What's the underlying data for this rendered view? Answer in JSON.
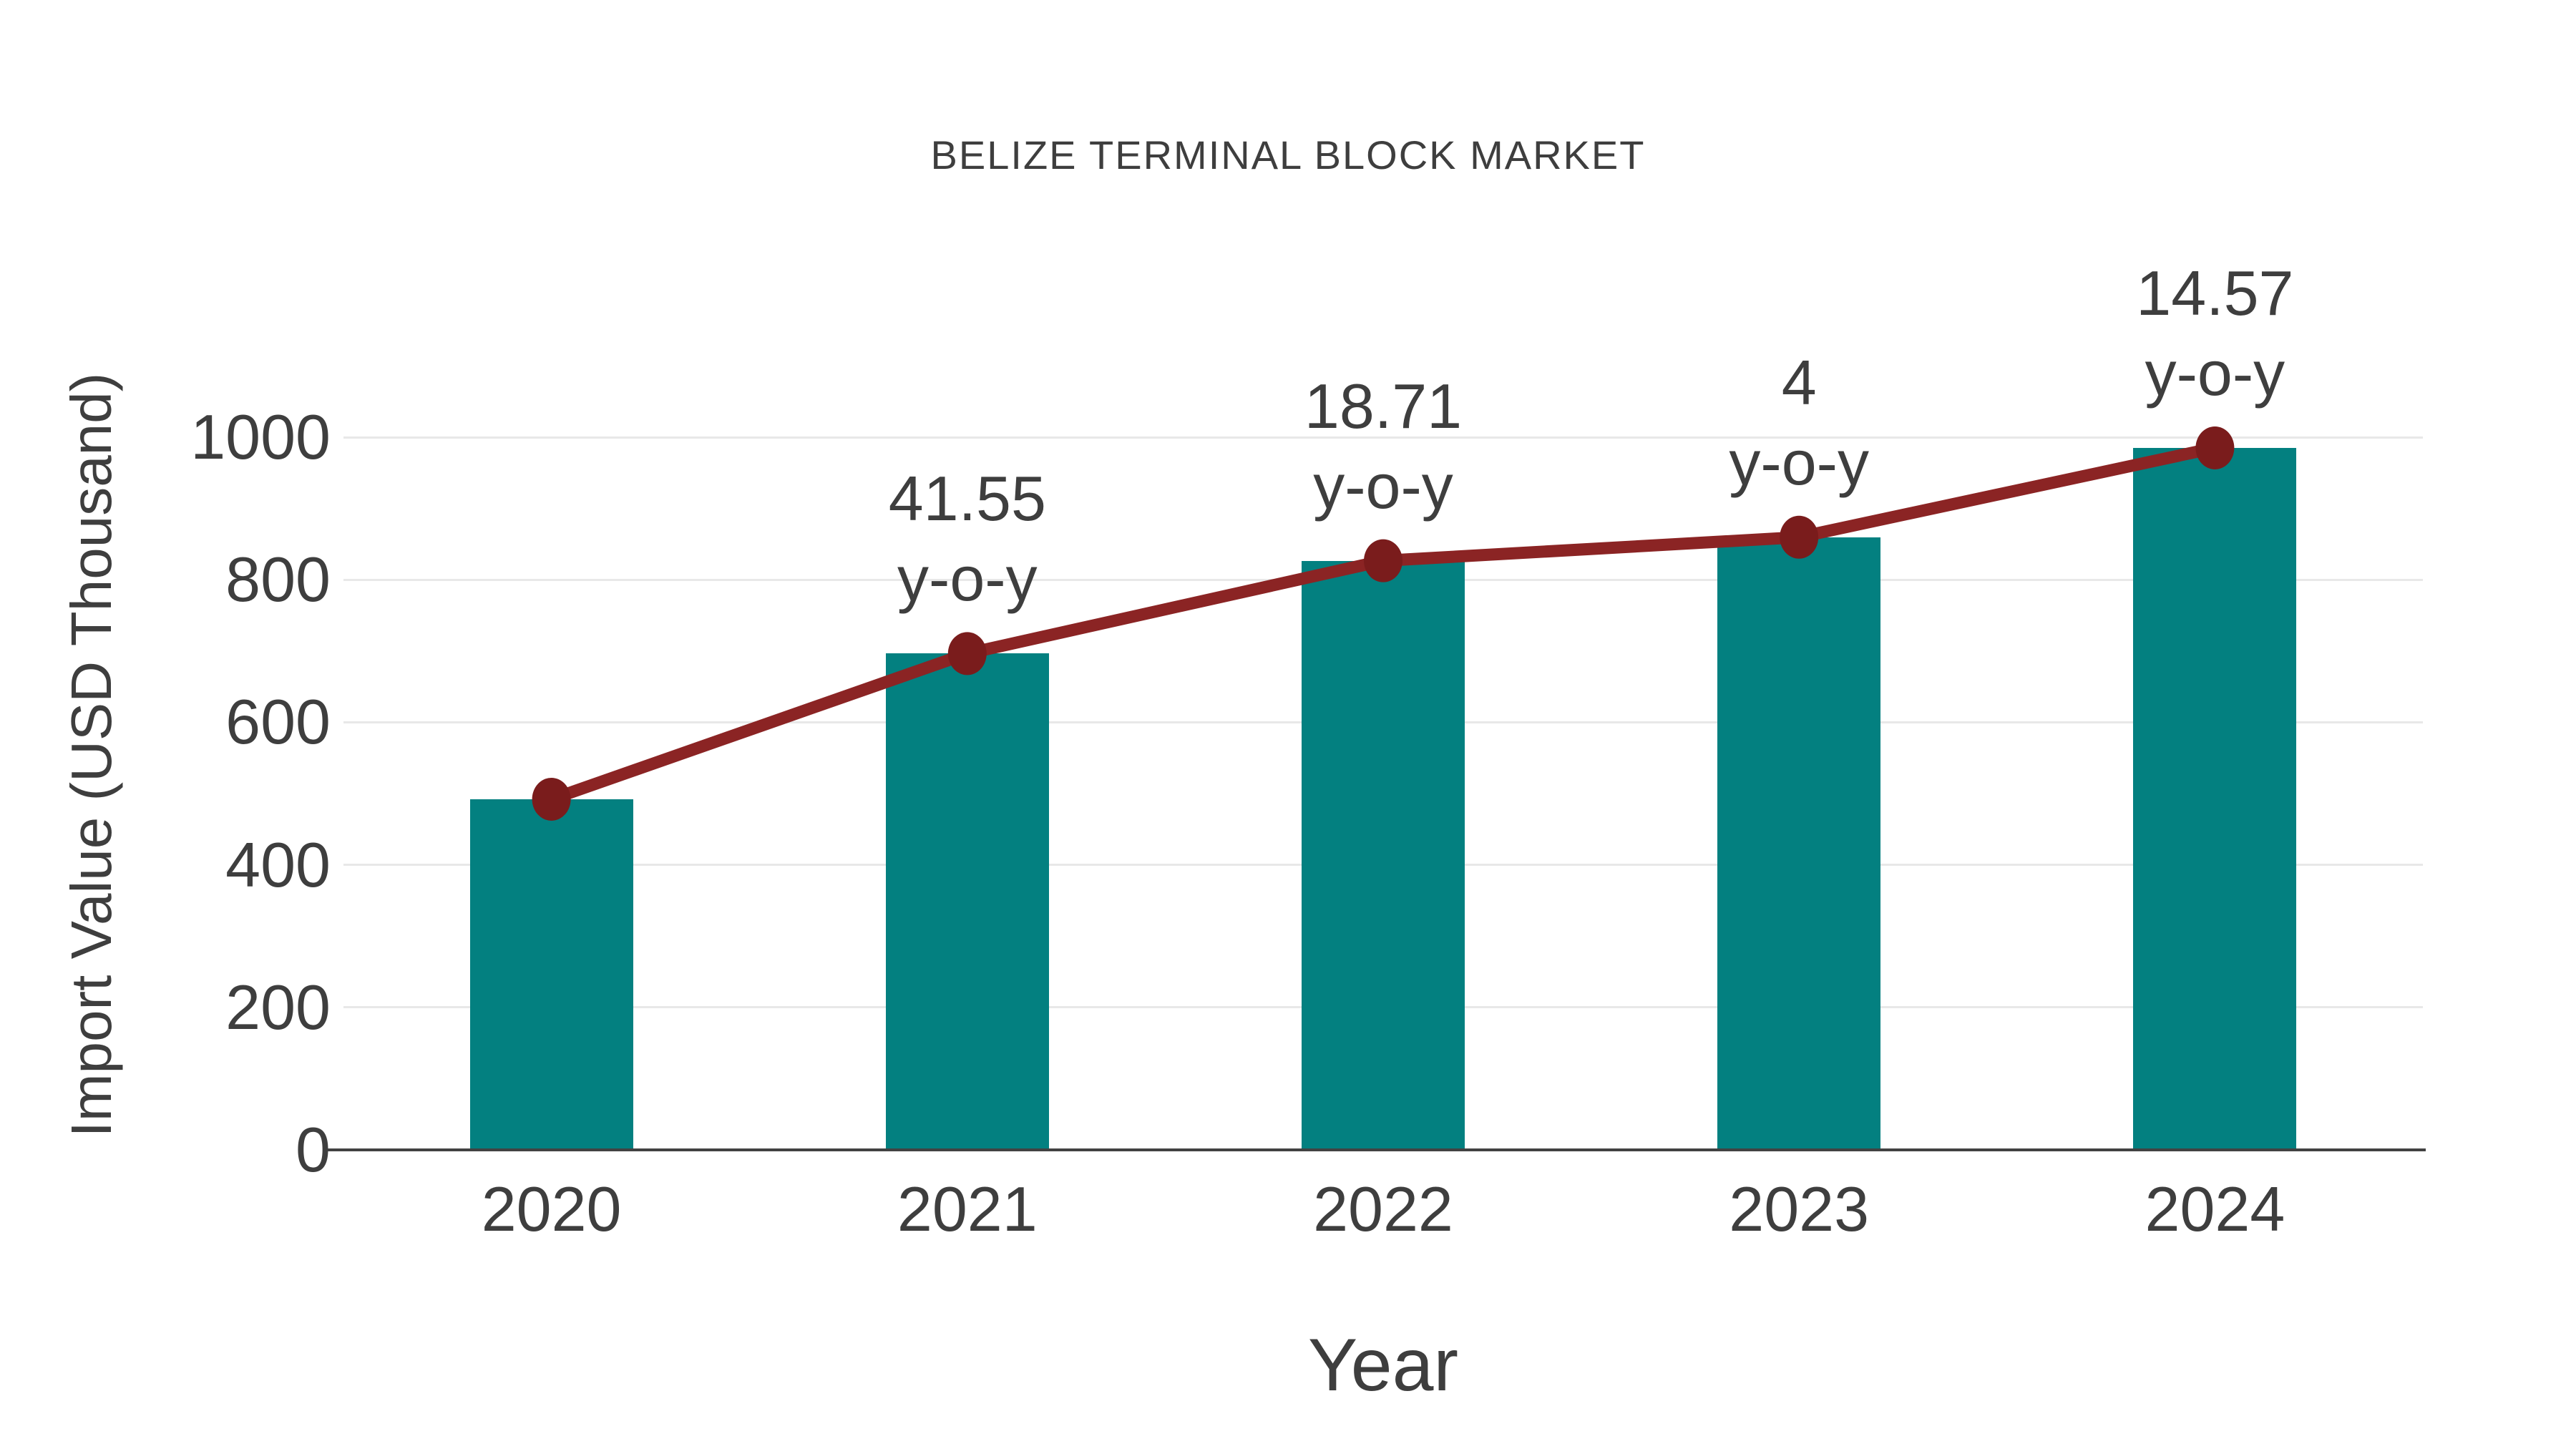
{
  "title": "BELIZE TERMINAL BLOCK MARKET",
  "colors": {
    "bar": "#038080",
    "line": "#8B2424",
    "marker": "#7A1C1C",
    "grid": "#E8E8E8",
    "axis_line": "#424242",
    "text": "#3E3E3E",
    "background": "#FFFFFF"
  },
  "chart_data": {
    "type": "bar",
    "title": "BELIZE TERMINAL BLOCK MARKET",
    "xlabel": "Year",
    "ylabel": "Import Value (USD Thousand)",
    "categories": [
      "2020",
      "2021",
      "2022",
      "2023",
      "2024"
    ],
    "series": [
      {
        "name": "import-value-bars",
        "type": "bar",
        "values": [
          492,
          696.4,
          826.7,
          859.7,
          985
        ]
      },
      {
        "name": "import-value-trend-line",
        "type": "line",
        "values": [
          492,
          696.4,
          826.7,
          859.7,
          985
        ]
      }
    ],
    "annotations": [
      {
        "category": "2021",
        "value_label": "41.55",
        "unit_label": "y-o-y"
      },
      {
        "category": "2022",
        "value_label": "18.71",
        "unit_label": "y-o-y"
      },
      {
        "category": "2023",
        "value_label": "4",
        "unit_label": "y-o-y"
      },
      {
        "category": "2024",
        "value_label": "14.57",
        "unit_label": "y-o-y"
      }
    ],
    "yticks": [
      0,
      200,
      400,
      600,
      800,
      1000
    ],
    "ylim": [
      0,
      1050
    ],
    "grid": true,
    "legend": false
  }
}
